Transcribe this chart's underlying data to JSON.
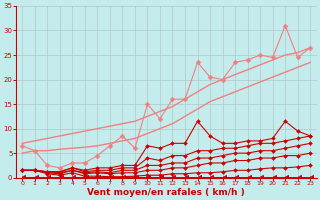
{
  "background_color": "#c5eced",
  "grid_color": "#b0c8c8",
  "xlabel": "Vent moyen/en rafales ( km/h )",
  "xlabel_color": "#cc0000",
  "tick_color": "#cc0000",
  "xlim": [
    -0.5,
    23.5
  ],
  "ylim": [
    0,
    35
  ],
  "xticks": [
    0,
    1,
    2,
    3,
    4,
    5,
    6,
    7,
    8,
    9,
    10,
    11,
    12,
    13,
    14,
    15,
    16,
    17,
    18,
    19,
    20,
    21,
    22,
    23
  ],
  "yticks": [
    0,
    5,
    10,
    15,
    20,
    25,
    30,
    35
  ],
  "series": [
    {
      "x": [
        0,
        1,
        2,
        3,
        4,
        5,
        6,
        7,
        8,
        9,
        10,
        11,
        12,
        13,
        14,
        15,
        16,
        17,
        18,
        19,
        20,
        21,
        22,
        23
      ],
      "y": [
        0.1,
        0.1,
        0.1,
        0.1,
        0.1,
        0.1,
        0.1,
        0.1,
        0.1,
        0.1,
        0.1,
        0.1,
        0.1,
        0.1,
        0.1,
        0.1,
        0.1,
        0.1,
        0.1,
        0.1,
        0.1,
        0.1,
        0.1,
        0.1
      ],
      "color": "#cc0000",
      "lw": 0.7,
      "marker": 4,
      "ms": 3.5,
      "alpha": 1.0
    },
    {
      "x": [
        0,
        1,
        2,
        3,
        4,
        5,
        6,
        7,
        8,
        9,
        10,
        11,
        12,
        13,
        14,
        15,
        16,
        17,
        18,
        19,
        20,
        21,
        22,
        23
      ],
      "y": [
        1.5,
        1.5,
        0.8,
        0.5,
        1.0,
        0.3,
        0.3,
        0.2,
        0.2,
        0.3,
        0.5,
        0.5,
        0.8,
        0.8,
        1.0,
        1.0,
        1.2,
        1.5,
        1.5,
        1.8,
        2.0,
        2.0,
        2.2,
        2.5
      ],
      "color": "#cc0000",
      "lw": 0.8,
      "marker": "D",
      "ms": 2.0,
      "alpha": 1.0
    },
    {
      "x": [
        0,
        1,
        2,
        3,
        4,
        5,
        6,
        7,
        8,
        9,
        10,
        11,
        12,
        13,
        14,
        15,
        16,
        17,
        18,
        19,
        20,
        21,
        22,
        23
      ],
      "y": [
        1.5,
        1.5,
        1.0,
        0.8,
        1.5,
        0.8,
        1.0,
        0.8,
        1.0,
        1.0,
        1.5,
        1.5,
        2.0,
        2.0,
        2.5,
        3.0,
        3.0,
        3.5,
        3.5,
        4.0,
        4.0,
        4.5,
        4.5,
        5.0
      ],
      "color": "#cc0000",
      "lw": 0.8,
      "marker": "D",
      "ms": 2.0,
      "alpha": 1.0
    },
    {
      "x": [
        0,
        1,
        2,
        3,
        4,
        5,
        6,
        7,
        8,
        9,
        10,
        11,
        12,
        13,
        14,
        15,
        16,
        17,
        18,
        19,
        20,
        21,
        22,
        23
      ],
      "y": [
        1.5,
        1.5,
        1.2,
        1.0,
        1.5,
        1.0,
        1.2,
        1.0,
        1.5,
        1.5,
        2.5,
        2.5,
        3.0,
        3.0,
        4.0,
        4.0,
        4.5,
        5.0,
        5.0,
        5.5,
        5.5,
        6.0,
        6.5,
        7.0
      ],
      "color": "#cc0000",
      "lw": 0.8,
      "marker": "D",
      "ms": 2.0,
      "alpha": 1.0
    },
    {
      "x": [
        0,
        1,
        2,
        3,
        4,
        5,
        6,
        7,
        8,
        9,
        10,
        11,
        12,
        13,
        14,
        15,
        16,
        17,
        18,
        19,
        20,
        21,
        22,
        23
      ],
      "y": [
        1.5,
        1.5,
        1.2,
        1.2,
        2.0,
        1.2,
        1.5,
        1.5,
        2.0,
        2.0,
        4.0,
        3.5,
        4.5,
        4.5,
        5.5,
        5.5,
        6.0,
        6.0,
        6.5,
        7.0,
        7.0,
        7.5,
        8.0,
        8.5
      ],
      "color": "#cc0000",
      "lw": 0.8,
      "marker": "D",
      "ms": 2.0,
      "alpha": 1.0
    },
    {
      "x": [
        0,
        1,
        2,
        3,
        4,
        5,
        6,
        7,
        8,
        9,
        10,
        11,
        12,
        13,
        14,
        15,
        16,
        17,
        18,
        19,
        20,
        21,
        22,
        23
      ],
      "y": [
        1.5,
        1.5,
        1.2,
        1.2,
        2.0,
        1.5,
        2.0,
        2.0,
        2.5,
        2.5,
        6.5,
        6.0,
        7.0,
        7.0,
        11.5,
        8.5,
        7.0,
        7.0,
        7.5,
        7.5,
        8.0,
        11.5,
        9.5,
        8.5
      ],
      "color": "#cc0000",
      "lw": 0.8,
      "marker": "D",
      "ms": 2.0,
      "alpha": 1.0
    },
    {
      "x": [
        0,
        1,
        2,
        3,
        4,
        5,
        6,
        7,
        8,
        9,
        10,
        11,
        12,
        13,
        14,
        15,
        16,
        17,
        18,
        19,
        20,
        21,
        22,
        23
      ],
      "y": [
        6.5,
        5.5,
        2.5,
        2.0,
        3.0,
        3.0,
        4.5,
        6.5,
        8.5,
        6.0,
        15.0,
        12.0,
        16.0,
        16.0,
        23.5,
        20.5,
        20.0,
        23.5,
        24.0,
        25.0,
        24.5,
        31.0,
        24.5,
        26.5
      ],
      "color": "#f08080",
      "lw": 0.8,
      "marker": "D",
      "ms": 2.5,
      "alpha": 1.0
    },
    {
      "x": [
        0,
        1,
        2,
        3,
        4,
        5,
        6,
        7,
        8,
        9,
        10,
        11,
        12,
        13,
        14,
        15,
        16,
        17,
        18,
        19,
        20,
        21,
        22,
        23
      ],
      "y": [
        7.0,
        7.5,
        8.0,
        8.5,
        9.0,
        9.5,
        10.0,
        10.5,
        11.0,
        11.5,
        12.5,
        13.5,
        14.5,
        16.0,
        17.5,
        19.0,
        20.0,
        21.0,
        22.0,
        23.0,
        24.0,
        25.0,
        25.5,
        26.5
      ],
      "color": "#f08080",
      "lw": 1.0,
      "marker": null,
      "ms": 0,
      "alpha": 1.0
    },
    {
      "x": [
        0,
        1,
        2,
        3,
        4,
        5,
        6,
        7,
        8,
        9,
        10,
        11,
        12,
        13,
        14,
        15,
        16,
        17,
        18,
        19,
        20,
        21,
        22,
        23
      ],
      "y": [
        5.0,
        5.5,
        5.5,
        5.8,
        6.0,
        6.2,
        6.5,
        7.0,
        7.5,
        8.0,
        9.0,
        10.0,
        11.0,
        12.5,
        14.0,
        15.5,
        16.5,
        17.5,
        18.5,
        19.5,
        20.5,
        21.5,
        22.5,
        23.5
      ],
      "color": "#f08080",
      "lw": 1.0,
      "marker": null,
      "ms": 0,
      "alpha": 1.0
    }
  ]
}
